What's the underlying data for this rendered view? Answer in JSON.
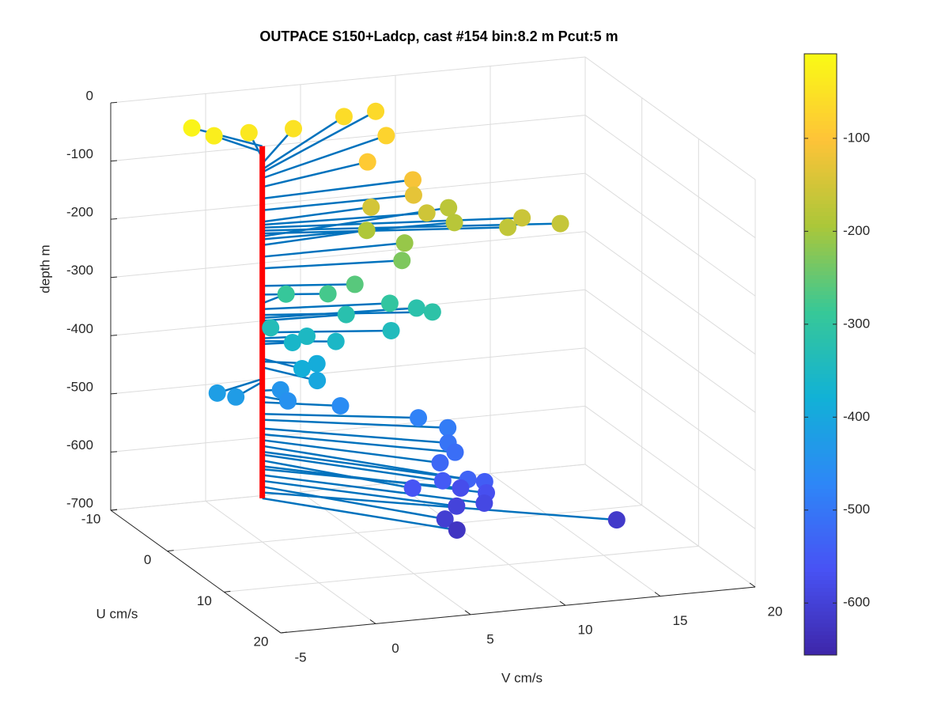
{
  "chart_data": {
    "type": "scatter3",
    "title": "OUTPACE S150+Ladcp, cast #154 bin:8.2 m  Pcut:5 m",
    "xlabel": "V cm/s",
    "ylabel": "U cm/s",
    "zlabel": "depth m",
    "xlim": [
      -5,
      20
    ],
    "xticks": [
      -5,
      0,
      5,
      10,
      15,
      20
    ],
    "ylim": [
      -10,
      20
    ],
    "yticks": [
      -10,
      0,
      10,
      20
    ],
    "zlim": [
      -700,
      0
    ],
    "zticks": [
      -700,
      -600,
      -500,
      -400,
      -300,
      -200,
      -100,
      0
    ],
    "grid": true,
    "line_color": "#0072bd",
    "profile_color": "#ff0000",
    "colormap": "parula",
    "clim": [
      -656,
      -9
    ],
    "cticks": [
      -600,
      -500,
      -400,
      -300,
      -200,
      -100
    ],
    "depth": [
      -20,
      -30,
      -40,
      -50,
      -60,
      -65,
      -75,
      -90,
      -110,
      -130,
      -150,
      -155,
      -160,
      -165,
      -170,
      -175,
      -180,
      -190,
      -210,
      -230,
      -260,
      -275,
      -290,
      -300,
      -310,
      -315,
      -320,
      -335,
      -340,
      -350,
      -355,
      -360,
      -385,
      -390,
      -400,
      -420,
      -425,
      -440,
      -450,
      -460,
      -480,
      -490,
      -505,
      -515,
      -525,
      -535,
      -545,
      -550,
      -560,
      -570,
      -575,
      -585,
      -595,
      -605,
      -615,
      -625
    ],
    "u": [
      -5.4,
      -4.5,
      -5.7,
      -6.9,
      -9.7,
      -10.8,
      -6.6,
      -3.2,
      -0.9,
      -0.1,
      -0.9,
      0.9,
      3.3,
      4.7,
      3.8,
      -2.3,
      0.4,
      -1.0,
      0.0,
      1.2,
      1.6,
      1.2,
      -1.5,
      1.4,
      2.9,
      1.1,
      0.4,
      -0.2,
      2.3,
      0.5,
      1.6,
      0.3,
      3.0,
      1.6,
      4.0,
      2.1,
      2.7,
      0.2,
      1.5,
      2.4,
      4.1,
      5.6,
      7.0,
      7.9,
      8.6,
      11.5,
      11.1,
      9.4,
      9.1,
      10.4,
      8.2,
      10.7,
      9.5,
      10.8,
      13.3,
      10.9
    ],
    "v": [
      -2.1,
      -1.2,
      1.0,
      3.7,
      7.2,
      9.2,
      8.5,
      6.5,
      8.2,
      8.0,
      6.0,
      8.4,
      12.7,
      14.3,
      11.8,
      10.5,
      10.0,
      5.8,
      7.5,
      7.0,
      4.4,
      3.1,
      1.7,
      6.3,
      8.1,
      7.8,
      4.3,
      0.5,
      6.1,
      2.2,
      3.4,
      1.5,
      1.2,
      2.4,
      1.7,
      -3.0,
      -2.2,
      0.9,
      0.9,
      3.4,
      7.0,
      8.1,
      7.7,
      7.8,
      6.8,
      7.4,
      8.4,
      6.7,
      5.2,
      8.7,
      8.0,
      8.5,
      7.4,
      6.4,
      14.7,
      7.0
    ]
  }
}
